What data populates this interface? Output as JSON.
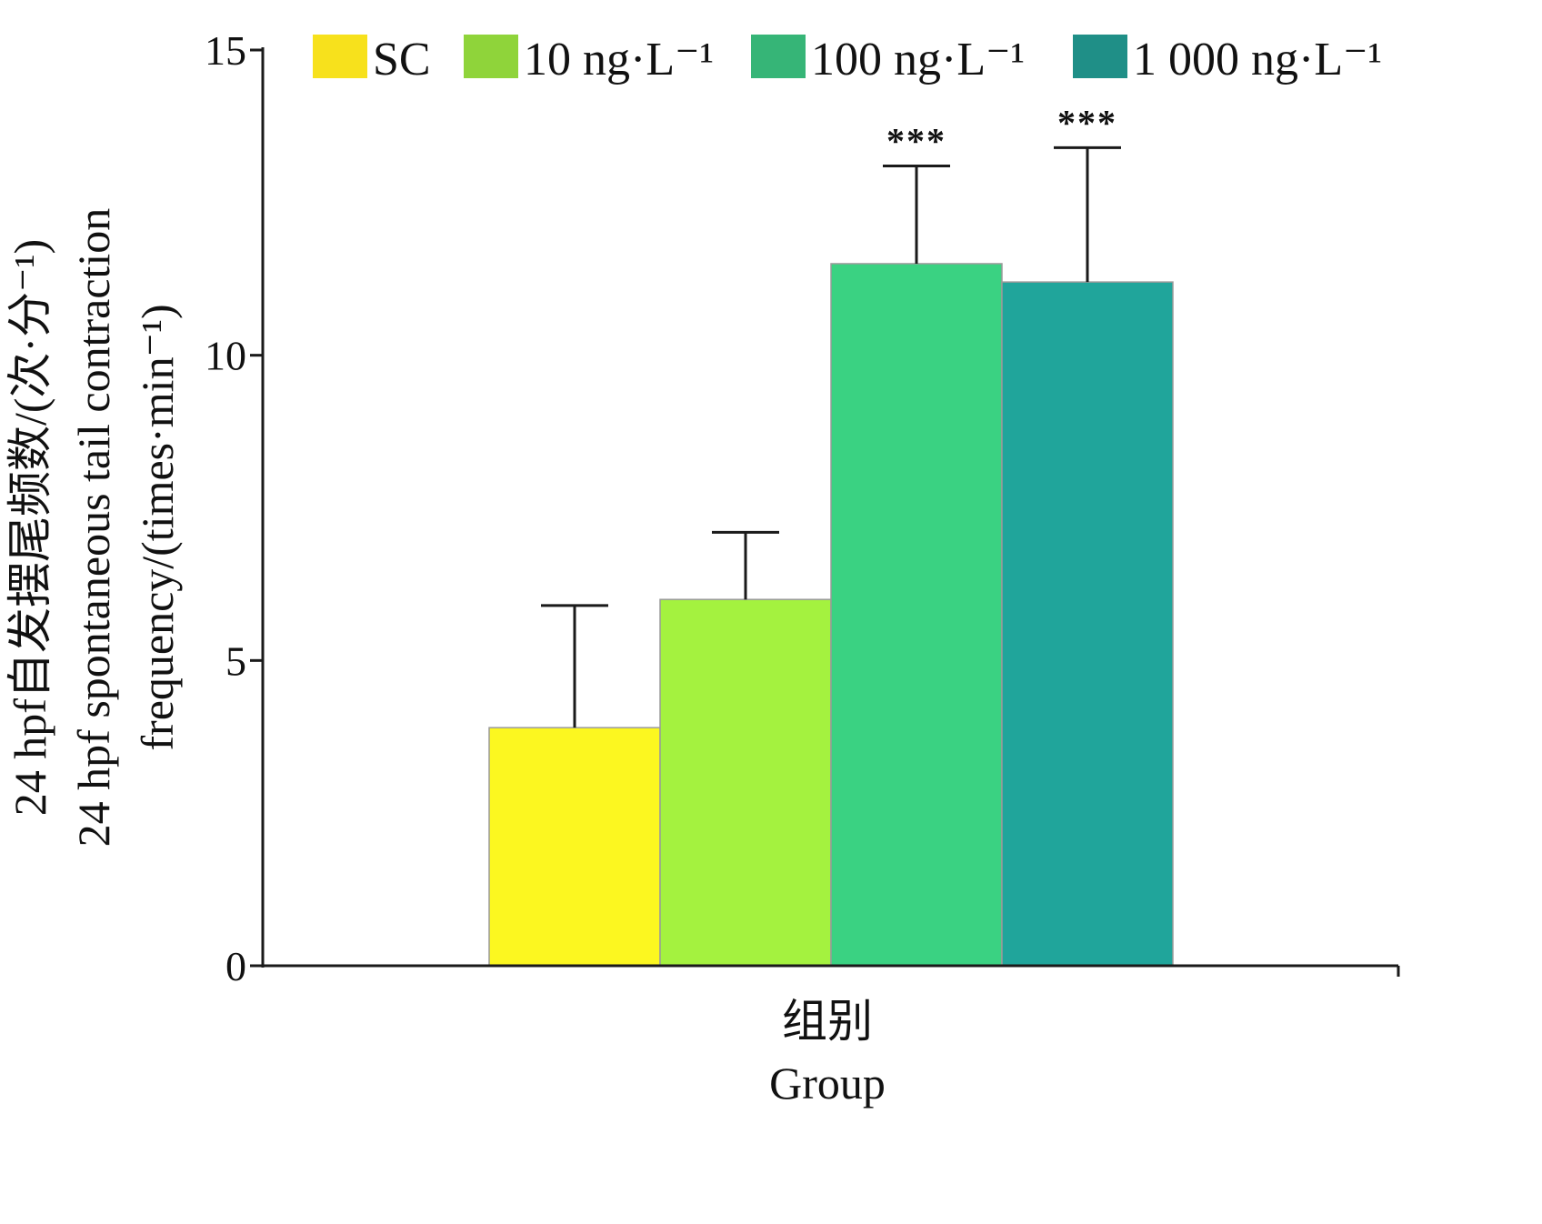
{
  "chart_data": {
    "type": "bar",
    "categories": [
      "SC",
      "10 ng·L⁻¹",
      "100 ng·L⁻¹",
      "1 000 ng·L⁻¹"
    ],
    "series": [
      {
        "name": "SC",
        "value": 3.9,
        "error": 2.0,
        "color": "#fcf720",
        "legend_color": "#f7e11c"
      },
      {
        "name": "10 ng·L⁻¹",
        "value": 6.0,
        "error": 1.1,
        "color": "#a4f23f",
        "legend_color": "#8fd43a"
      },
      {
        "name": "100 ng·L⁻¹",
        "value": 11.5,
        "error": 1.6,
        "color": "#3ad282",
        "legend_color": "#36b577"
      },
      {
        "name": "1 000 ng·L⁻¹",
        "value": 11.2,
        "error": 2.2,
        "color": "#20a59b",
        "legend_color": "#1f8f87"
      }
    ],
    "annotations": [
      "",
      "",
      "***",
      "***"
    ],
    "ylim": [
      0,
      15
    ],
    "yticks": [
      "0",
      "5",
      "10",
      "15"
    ],
    "ylabel": [
      "24 hpf自发摆尾频数/(次·分⁻¹)",
      "24 hpf spontaneous tail contraction",
      "frequency/(times·min⁻¹)"
    ],
    "xlabel": [
      "组别",
      "Group"
    ],
    "legend_position": "top",
    "grid": false
  }
}
